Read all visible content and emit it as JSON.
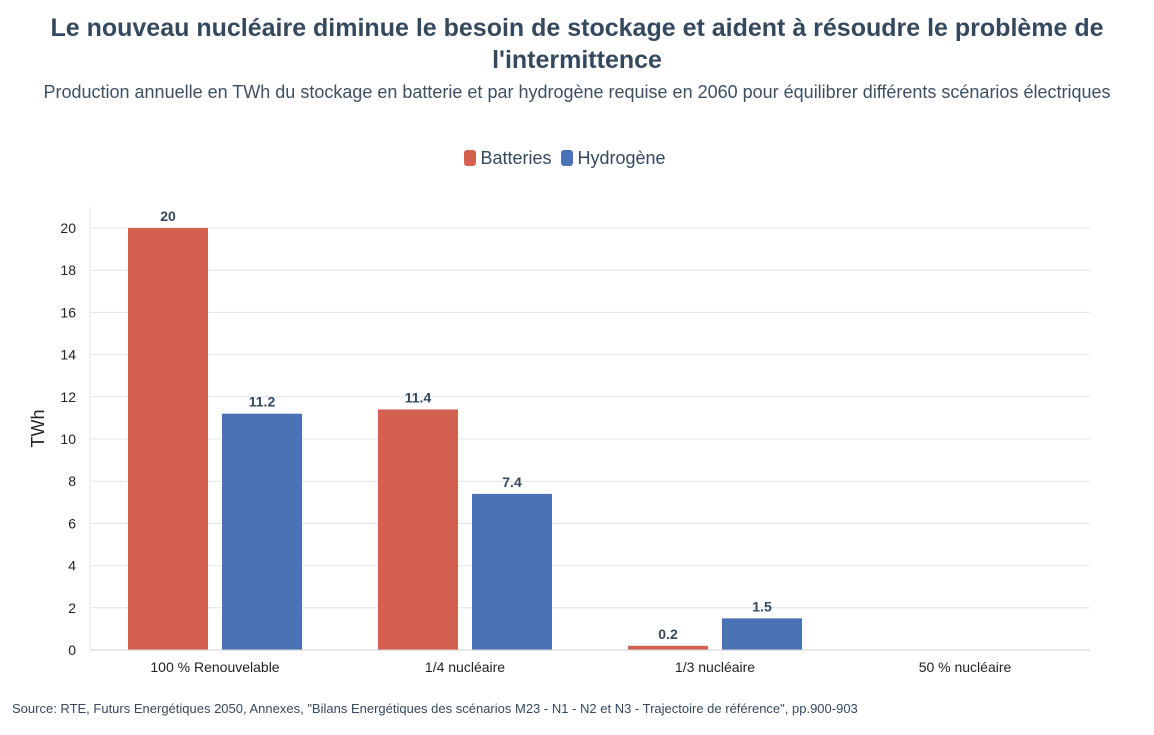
{
  "chart_data": {
    "type": "bar",
    "title": "Le nouveau nucléaire diminue le besoin de stockage et aident à résoudre le problème de l'intermittence",
    "subtitle": "Production annuelle en TWh du stockage en batterie et par hydrogène requise en 2060 pour équilibrer différents scénarios électriques",
    "xlabel": "",
    "ylabel": "TWh",
    "ylim": [
      0,
      21
    ],
    "yticks": [
      0,
      2,
      4,
      6,
      8,
      10,
      12,
      14,
      16,
      18,
      20
    ],
    "grid": true,
    "legend_position": "top-center",
    "categories": [
      "100 % Renouvelable",
      "1/4 nucléaire",
      "1/3 nucléaire",
      "50 % nucléaire"
    ],
    "series": [
      {
        "name": "Batteries",
        "color": "#d4604f",
        "values": [
          20,
          11.4,
          0.2,
          null
        ],
        "labels": [
          "20",
          "11.4",
          "0.2",
          ""
        ]
      },
      {
        "name": "Hydrogène",
        "color": "#4a72b5",
        "values": [
          11.2,
          7.4,
          1.5,
          null
        ],
        "labels": [
          "11.2",
          "7.4",
          "1.5",
          ""
        ]
      }
    ],
    "source": "Source: RTE, Futurs Energétiques 2050, Annexes, \"Bilans Energétiques des scénarios M23 - N1 - N2 et N3 - Trajectoire de référence\", pp.900-903"
  }
}
